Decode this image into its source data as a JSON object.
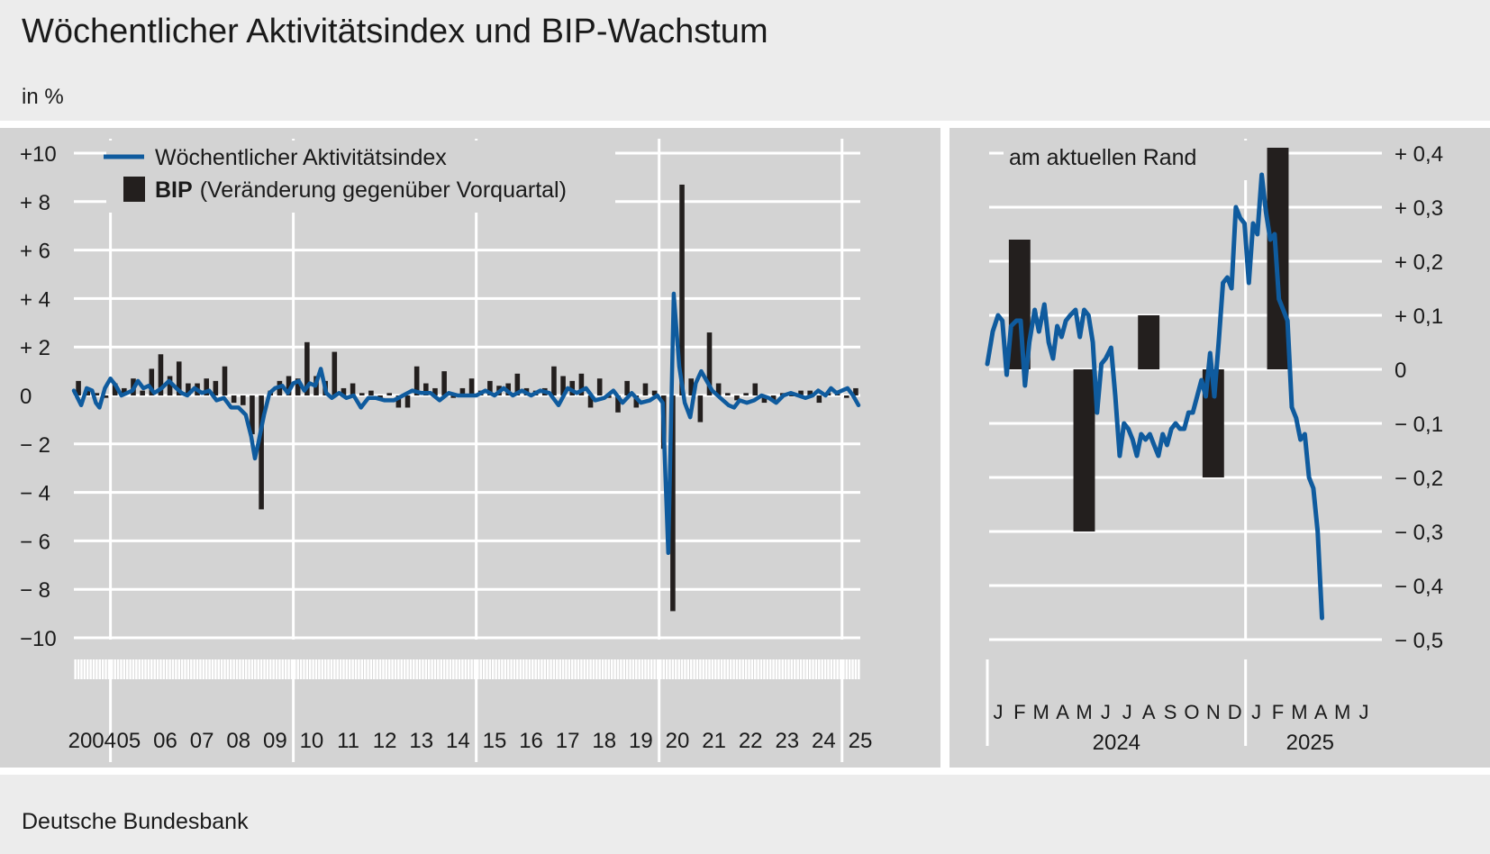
{
  "header": {
    "title": "Wöchentlicher Aktivitätsindex und BIP-Wachstum",
    "unit": "in %"
  },
  "footer": {
    "source": "Deutsche Bundesbank"
  },
  "colors": {
    "line": "#0f5b9e",
    "bar": "#231f1e",
    "panel": "#d3d3d3",
    "grid": "#ffffff",
    "background": "#ececec"
  },
  "chart_data": [
    {
      "type": "bar+line",
      "legend": {
        "line_label": "Wöchentlicher Aktivitätsindex",
        "bar_label_bold": "BIP",
        "bar_label_rest": "(Veränderung gegenüber Vorquartal)",
        "placement": "top-left"
      },
      "ylim": [
        -10,
        10
      ],
      "xlim": [
        2004,
        2025.5
      ],
      "y_ticks": [
        {
          "v": 10,
          "label": "+10"
        },
        {
          "v": 8,
          "label": "+ 8"
        },
        {
          "v": 6,
          "label": "+ 6"
        },
        {
          "v": 4,
          "label": "+ 4"
        },
        {
          "v": 2,
          "label": "+ 2"
        },
        {
          "v": 0,
          "label": "0"
        },
        {
          "v": -2,
          "label": "− 2"
        },
        {
          "v": -4,
          "label": "− 4"
        },
        {
          "v": -6,
          "label": "− 6"
        },
        {
          "v": -8,
          "label": "− 8"
        },
        {
          "v": -10,
          "label": "−10"
        }
      ],
      "x_year_labels": [
        "2004",
        "05",
        "06",
        "07",
        "08",
        "09",
        "10",
        "11",
        "12",
        "13",
        "14",
        "15",
        "16",
        "17",
        "18",
        "19",
        "20",
        "21",
        "22",
        "23",
        "24",
        "25"
      ],
      "x_year_start": 2004,
      "x_vertical_gridlines": [
        2005,
        2010,
        2015,
        2020,
        2025
      ],
      "grid": true,
      "series": [
        {
          "name": "BIP",
          "kind": "bar",
          "x_start": 2004.0,
          "x_step": 0.25,
          "values": [
            0.6,
            0.2,
            0.1,
            -0.1,
            0.5,
            0.3,
            0.7,
            0.2,
            1.1,
            1.7,
            0.8,
            1.4,
            0.5,
            0.5,
            0.7,
            0.6,
            1.2,
            -0.3,
            -0.4,
            -1.6,
            -4.7,
            0.2,
            0.6,
            0.8,
            0.7,
            2.2,
            0.8,
            0.6,
            1.8,
            0.3,
            0.5,
            0.1,
            0.2,
            -0.1,
            0.1,
            -0.5,
            -0.5,
            1.2,
            0.5,
            0.3,
            1.0,
            -0.1,
            0.3,
            0.7,
            0.2,
            0.6,
            0.4,
            0.5,
            0.9,
            0.3,
            0.2,
            0.3,
            1.2,
            0.8,
            0.6,
            0.9,
            -0.5,
            0.7,
            -0.1,
            -0.7,
            0.6,
            -0.5,
            0.5,
            0.2,
            -2.2,
            -8.9,
            8.7,
            0.7,
            -1.1,
            2.6,
            0.5,
            0.1,
            -0.2,
            0.1,
            0.5,
            -0.3,
            -0.2,
            0.1,
            0.0,
            0.2,
            0.2,
            -0.3,
            0.1,
            0.2,
            -0.1,
            0.3
          ]
        },
        {
          "name": "Wöchentlicher Aktivitätsindex",
          "kind": "line",
          "points": [
            [
              2004.0,
              0.2
            ],
            [
              2004.1,
              -0.1
            ],
            [
              2004.2,
              -0.4
            ],
            [
              2004.35,
              0.3
            ],
            [
              2004.5,
              0.2
            ],
            [
              2004.6,
              -0.3
            ],
            [
              2004.7,
              -0.5
            ],
            [
              2004.85,
              0.3
            ],
            [
              2005.0,
              0.7
            ],
            [
              2005.15,
              0.4
            ],
            [
              2005.3,
              0.0
            ],
            [
              2005.45,
              0.1
            ],
            [
              2005.6,
              0.2
            ],
            [
              2005.75,
              0.6
            ],
            [
              2005.9,
              0.3
            ],
            [
              2006.05,
              0.4
            ],
            [
              2006.2,
              0.1
            ],
            [
              2006.4,
              0.3
            ],
            [
              2006.6,
              0.6
            ],
            [
              2006.8,
              0.3
            ],
            [
              2006.95,
              0.1
            ],
            [
              2007.1,
              0.0
            ],
            [
              2007.3,
              0.3
            ],
            [
              2007.5,
              0.1
            ],
            [
              2007.7,
              0.2
            ],
            [
              2007.9,
              -0.2
            ],
            [
              2008.1,
              -0.1
            ],
            [
              2008.3,
              -0.5
            ],
            [
              2008.5,
              -0.5
            ],
            [
              2008.7,
              -0.8
            ],
            [
              2008.85,
              -1.7
            ],
            [
              2008.95,
              -2.6
            ],
            [
              2009.05,
              -1.9
            ],
            [
              2009.2,
              -0.8
            ],
            [
              2009.35,
              0.1
            ],
            [
              2009.5,
              0.3
            ],
            [
              2009.7,
              0.4
            ],
            [
              2009.85,
              0.1
            ],
            [
              2010.0,
              0.5
            ],
            [
              2010.15,
              0.6
            ],
            [
              2010.3,
              0.2
            ],
            [
              2010.45,
              0.5
            ],
            [
              2010.6,
              0.4
            ],
            [
              2010.75,
              1.1
            ],
            [
              2010.9,
              0.1
            ],
            [
              2011.05,
              -0.1
            ],
            [
              2011.25,
              0.1
            ],
            [
              2011.45,
              -0.1
            ],
            [
              2011.65,
              0.0
            ],
            [
              2011.85,
              -0.5
            ],
            [
              2012.05,
              -0.1
            ],
            [
              2012.25,
              -0.1
            ],
            [
              2012.5,
              -0.2
            ],
            [
              2012.75,
              -0.2
            ],
            [
              2013.0,
              0.0
            ],
            [
              2013.25,
              0.2
            ],
            [
              2013.5,
              0.1
            ],
            [
              2013.75,
              0.1
            ],
            [
              2014.0,
              -0.2
            ],
            [
              2014.25,
              0.1
            ],
            [
              2014.5,
              0.0
            ],
            [
              2014.75,
              0.0
            ],
            [
              2015.0,
              0.0
            ],
            [
              2015.25,
              0.2
            ],
            [
              2015.5,
              0.0
            ],
            [
              2015.75,
              0.3
            ],
            [
              2016.0,
              0.0
            ],
            [
              2016.25,
              0.2
            ],
            [
              2016.5,
              0.0
            ],
            [
              2016.75,
              0.2
            ],
            [
              2017.0,
              0.1
            ],
            [
              2017.25,
              -0.4
            ],
            [
              2017.5,
              0.3
            ],
            [
              2017.75,
              0.1
            ],
            [
              2018.0,
              0.3
            ],
            [
              2018.25,
              -0.2
            ],
            [
              2018.5,
              -0.1
            ],
            [
              2018.75,
              0.2
            ],
            [
              2019.0,
              -0.3
            ],
            [
              2019.25,
              0.1
            ],
            [
              2019.5,
              -0.3
            ],
            [
              2019.75,
              -0.2
            ],
            [
              2019.95,
              0.0
            ],
            [
              2020.1,
              -0.3
            ],
            [
              2020.25,
              -6.5
            ],
            [
              2020.4,
              4.2
            ],
            [
              2020.55,
              1.2
            ],
            [
              2020.7,
              -0.3
            ],
            [
              2020.85,
              -0.9
            ],
            [
              2021.0,
              0.5
            ],
            [
              2021.15,
              1.0
            ],
            [
              2021.3,
              0.6
            ],
            [
              2021.45,
              0.2
            ],
            [
              2021.6,
              0.0
            ],
            [
              2021.75,
              -0.2
            ],
            [
              2021.9,
              -0.4
            ],
            [
              2022.05,
              -0.5
            ],
            [
              2022.2,
              -0.2
            ],
            [
              2022.4,
              -0.3
            ],
            [
              2022.6,
              -0.2
            ],
            [
              2022.8,
              0.0
            ],
            [
              2023.0,
              -0.1
            ],
            [
              2023.2,
              -0.3
            ],
            [
              2023.4,
              0.0
            ],
            [
              2023.6,
              0.1
            ],
            [
              2023.8,
              0.0
            ],
            [
              2024.0,
              -0.1
            ],
            [
              2024.2,
              0.0
            ],
            [
              2024.35,
              0.2
            ],
            [
              2024.55,
              0.0
            ],
            [
              2024.7,
              0.3
            ],
            [
              2024.85,
              0.1
            ],
            [
              2025.0,
              0.2
            ],
            [
              2025.15,
              0.3
            ],
            [
              2025.3,
              0.0
            ],
            [
              2025.45,
              -0.4
            ]
          ]
        }
      ]
    },
    {
      "type": "bar+line",
      "title": "am aktuellen Rand",
      "ylim": [
        -0.5,
        0.4
      ],
      "y_ticks": [
        {
          "v": 0.4,
          "label": "+ 0,4"
        },
        {
          "v": 0.3,
          "label": "+ 0,3"
        },
        {
          "v": 0.2,
          "label": "+ 0,2"
        },
        {
          "v": 0.1,
          "label": "+ 0,1"
        },
        {
          "v": 0.0,
          "label": "0"
        },
        {
          "v": -0.1,
          "label": "− 0,1"
        },
        {
          "v": -0.2,
          "label": "− 0,2"
        },
        {
          "v": -0.3,
          "label": "− 0,3"
        },
        {
          "v": -0.4,
          "label": "− 0,4"
        },
        {
          "v": -0.5,
          "label": "− 0,5"
        }
      ],
      "month_labels": [
        "J",
        "F",
        "M",
        "A",
        "M",
        "J",
        "J",
        "A",
        "S",
        "O",
        "N",
        "D",
        "J",
        "F",
        "M",
        "A",
        "M",
        "J"
      ],
      "year_labels": [
        {
          "label": "2024",
          "month_index_center": 6
        },
        {
          "label": "2025",
          "month_index_center": 15
        }
      ],
      "grid": true,
      "series": [
        {
          "name": "BIP",
          "kind": "bar",
          "bars": [
            {
              "month_start": 0.5,
              "month_end": 2.5,
              "value": 0.24
            },
            {
              "month_start": 3.5,
              "month_end": 5.5,
              "value": -0.3
            },
            {
              "month_start": 6.5,
              "month_end": 8.5,
              "value": 0.1
            },
            {
              "month_start": 9.5,
              "month_end": 11.5,
              "value": -0.2
            },
            {
              "month_start": 12.5,
              "month_end": 14.5,
              "value": 0.41
            }
          ]
        },
        {
          "name": "Wöchentlicher Aktivitätsindex",
          "kind": "line",
          "points": [
            [
              0.0,
              0.01
            ],
            [
              0.25,
              0.07
            ],
            [
              0.5,
              0.1
            ],
            [
              0.7,
              0.09
            ],
            [
              0.9,
              -0.01
            ],
            [
              1.1,
              0.08
            ],
            [
              1.35,
              0.09
            ],
            [
              1.55,
              0.09
            ],
            [
              1.75,
              -0.03
            ],
            [
              1.95,
              0.05
            ],
            [
              2.2,
              0.11
            ],
            [
              2.4,
              0.07
            ],
            [
              2.65,
              0.12
            ],
            [
              2.85,
              0.05
            ],
            [
              3.05,
              0.02
            ],
            [
              3.25,
              0.08
            ],
            [
              3.45,
              0.06
            ],
            [
              3.65,
              0.09
            ],
            [
              3.85,
              0.1
            ],
            [
              4.1,
              0.11
            ],
            [
              4.3,
              0.06
            ],
            [
              4.5,
              0.11
            ],
            [
              4.7,
              0.1
            ],
            [
              4.9,
              0.05
            ],
            [
              5.1,
              -0.08
            ],
            [
              5.3,
              0.01
            ],
            [
              5.5,
              0.02
            ],
            [
              5.75,
              0.04
            ],
            [
              5.95,
              -0.05
            ],
            [
              6.15,
              -0.16
            ],
            [
              6.35,
              -0.1
            ],
            [
              6.55,
              -0.11
            ],
            [
              6.75,
              -0.13
            ],
            [
              6.95,
              -0.16
            ],
            [
              7.15,
              -0.12
            ],
            [
              7.35,
              -0.13
            ],
            [
              7.55,
              -0.12
            ],
            [
              7.75,
              -0.14
            ],
            [
              7.95,
              -0.16
            ],
            [
              8.15,
              -0.12
            ],
            [
              8.35,
              -0.14
            ],
            [
              8.55,
              -0.11
            ],
            [
              8.75,
              -0.1
            ],
            [
              8.95,
              -0.11
            ],
            [
              9.15,
              -0.11
            ],
            [
              9.35,
              -0.08
            ],
            [
              9.55,
              -0.08
            ],
            [
              9.75,
              -0.05
            ],
            [
              9.95,
              -0.02
            ],
            [
              10.15,
              -0.05
            ],
            [
              10.35,
              0.03
            ],
            [
              10.55,
              -0.05
            ],
            [
              10.75,
              0.05
            ],
            [
              10.95,
              0.16
            ],
            [
              11.15,
              0.17
            ],
            [
              11.35,
              0.15
            ],
            [
              11.55,
              0.3
            ],
            [
              11.75,
              0.28
            ],
            [
              11.95,
              0.27
            ],
            [
              12.15,
              0.16
            ],
            [
              12.35,
              0.27
            ],
            [
              12.55,
              0.25
            ],
            [
              12.75,
              0.36
            ],
            [
              12.95,
              0.29
            ],
            [
              13.15,
              0.24
            ],
            [
              13.35,
              0.25
            ],
            [
              13.55,
              0.13
            ],
            [
              13.75,
              0.11
            ],
            [
              13.95,
              0.09
            ],
            [
              14.15,
              -0.07
            ],
            [
              14.35,
              -0.09
            ],
            [
              14.55,
              -0.13
            ],
            [
              14.75,
              -0.12
            ],
            [
              14.95,
              -0.2
            ],
            [
              15.15,
              -0.22
            ],
            [
              15.35,
              -0.3
            ],
            [
              15.55,
              -0.46
            ]
          ]
        }
      ]
    }
  ]
}
